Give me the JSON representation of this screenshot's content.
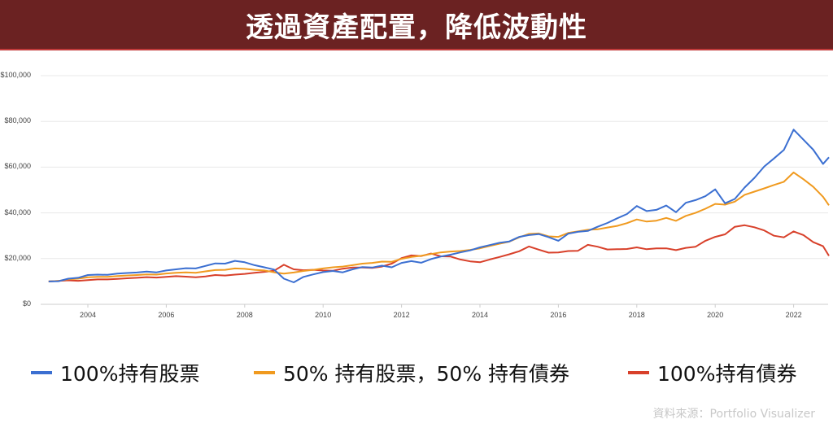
{
  "header": {
    "title": "透過資產配置，降低波動性"
  },
  "chart_data": {
    "type": "line",
    "title": "透過資產配置，降低波動性",
    "xlabel": "",
    "ylabel": "",
    "ylim": [
      0,
      100000
    ],
    "xlim": [
      2002.88,
      2022.95
    ],
    "grid": true,
    "legend_position": "bottom",
    "y_ticks": [
      "$0",
      "$20,000",
      "$40,000",
      "$60,000",
      "$80,000",
      "$100,000"
    ],
    "y_tick_values": [
      0,
      20000,
      40000,
      60000,
      80000,
      100000
    ],
    "x_ticks": [
      "2004",
      "2006",
      "2008",
      "2010",
      "2012",
      "2014",
      "2016",
      "2018",
      "2020",
      "2022"
    ],
    "x_tick_values": [
      2004,
      2006,
      2008,
      2010,
      2012,
      2014,
      2016,
      2018,
      2020,
      2022
    ],
    "x": [
      2003.0,
      2003.25,
      2003.5,
      2003.75,
      2004.0,
      2004.25,
      2004.5,
      2004.75,
      2005.0,
      2005.25,
      2005.5,
      2005.75,
      2006.0,
      2006.25,
      2006.5,
      2006.75,
      2007.0,
      2007.25,
      2007.5,
      2007.75,
      2008.0,
      2008.25,
      2008.5,
      2008.75,
      2009.0,
      2009.25,
      2009.5,
      2009.75,
      2010.0,
      2010.25,
      2010.5,
      2010.75,
      2011.0,
      2011.25,
      2011.5,
      2011.75,
      2012.0,
      2012.25,
      2012.5,
      2012.75,
      2013.0,
      2013.25,
      2013.5,
      2013.75,
      2014.0,
      2014.25,
      2014.5,
      2014.75,
      2015.0,
      2015.25,
      2015.5,
      2015.75,
      2016.0,
      2016.25,
      2016.5,
      2016.75,
      2017.0,
      2017.25,
      2017.5,
      2017.75,
      2018.0,
      2018.25,
      2018.5,
      2018.75,
      2019.0,
      2019.25,
      2019.5,
      2019.75,
      2020.0,
      2020.25,
      2020.5,
      2020.75,
      2021.0,
      2021.25,
      2021.5,
      2021.75,
      2022.0,
      2022.25,
      2022.5,
      2022.75,
      2022.9
    ],
    "series": [
      {
        "name": "100%持有股票",
        "color": "#3b6fd1",
        "values": [
          10000,
          10100,
          11200,
          11600,
          12800,
          13000,
          12900,
          13400,
          13700,
          13900,
          14300,
          14000,
          14800,
          15300,
          15800,
          15700,
          16800,
          17900,
          17800,
          19000,
          18400,
          17100,
          16200,
          15200,
          11200,
          9600,
          12000,
          13100,
          14100,
          14600,
          14000,
          15300,
          16300,
          16100,
          16900,
          16200,
          18100,
          18900,
          18200,
          19800,
          20900,
          21700,
          22700,
          23600,
          24900,
          25900,
          26900,
          27500,
          29500,
          30300,
          30700,
          29400,
          27800,
          30900,
          31700,
          32100,
          33900,
          35600,
          37600,
          39500,
          43000,
          40800,
          41300,
          43200,
          40300,
          44400,
          45600,
          47300,
          50300,
          44200,
          46100,
          51100,
          55300,
          60300,
          63800,
          67500,
          76400,
          72000,
          67600,
          61400,
          64300
        ]
      },
      {
        "name": "50% 持有股票，50% 持有債券",
        "color": "#f09a1f",
        "values": [
          10000,
          10200,
          11000,
          11200,
          11800,
          12000,
          12000,
          12400,
          12600,
          12800,
          13100,
          13000,
          13500,
          13800,
          14000,
          13800,
          14400,
          15000,
          15100,
          15700,
          15500,
          15100,
          14800,
          14000,
          13400,
          13900,
          14600,
          15100,
          15700,
          16200,
          16500,
          17100,
          17800,
          18100,
          18700,
          18600,
          19900,
          20700,
          21200,
          22000,
          22700,
          23100,
          23300,
          23800,
          24500,
          25500,
          26500,
          27400,
          29300,
          30800,
          31000,
          29700,
          29500,
          31200,
          31900,
          32600,
          32800,
          33600,
          34300,
          35500,
          37100,
          36200,
          36600,
          37800,
          36500,
          38700,
          40000,
          41800,
          43900,
          43600,
          44900,
          47900,
          49300,
          50700,
          52200,
          53600,
          57700,
          54700,
          51400,
          47000,
          43300
        ]
      },
      {
        "name": "100%持有債券",
        "color": "#d8402a",
        "values": [
          10000,
          10200,
          10500,
          10300,
          10600,
          10900,
          10900,
          11100,
          11400,
          11600,
          11900,
          11700,
          12000,
          12300,
          12100,
          11800,
          12200,
          12800,
          12600,
          13000,
          13300,
          13800,
          14200,
          14700,
          17300,
          15300,
          14900,
          15100,
          14800,
          14700,
          15600,
          16100,
          16100,
          15900,
          16500,
          17800,
          20200,
          21400,
          21100,
          22200,
          21000,
          20900,
          19600,
          18800,
          18400,
          19600,
          20700,
          21900,
          23200,
          25300,
          23900,
          22600,
          22700,
          23300,
          23400,
          26000,
          25200,
          24000,
          24100,
          24200,
          24900,
          24100,
          24500,
          24500,
          23700,
          24700,
          25200,
          27800,
          29500,
          30600,
          33900,
          34600,
          33700,
          32300,
          30000,
          29300,
          31900,
          30300,
          27200,
          25400,
          21200
        ]
      }
    ]
  },
  "legend": {
    "items": [
      {
        "label": "100%持有股票",
        "color": "#3b6fd1"
      },
      {
        "label": "50% 持有股票，50% 持有債券",
        "color": "#f09a1f"
      },
      {
        "label": "100%持有債券",
        "color": "#d8402a"
      }
    ]
  },
  "footer": {
    "source": "資料來源：Portfolio Visualizer"
  }
}
